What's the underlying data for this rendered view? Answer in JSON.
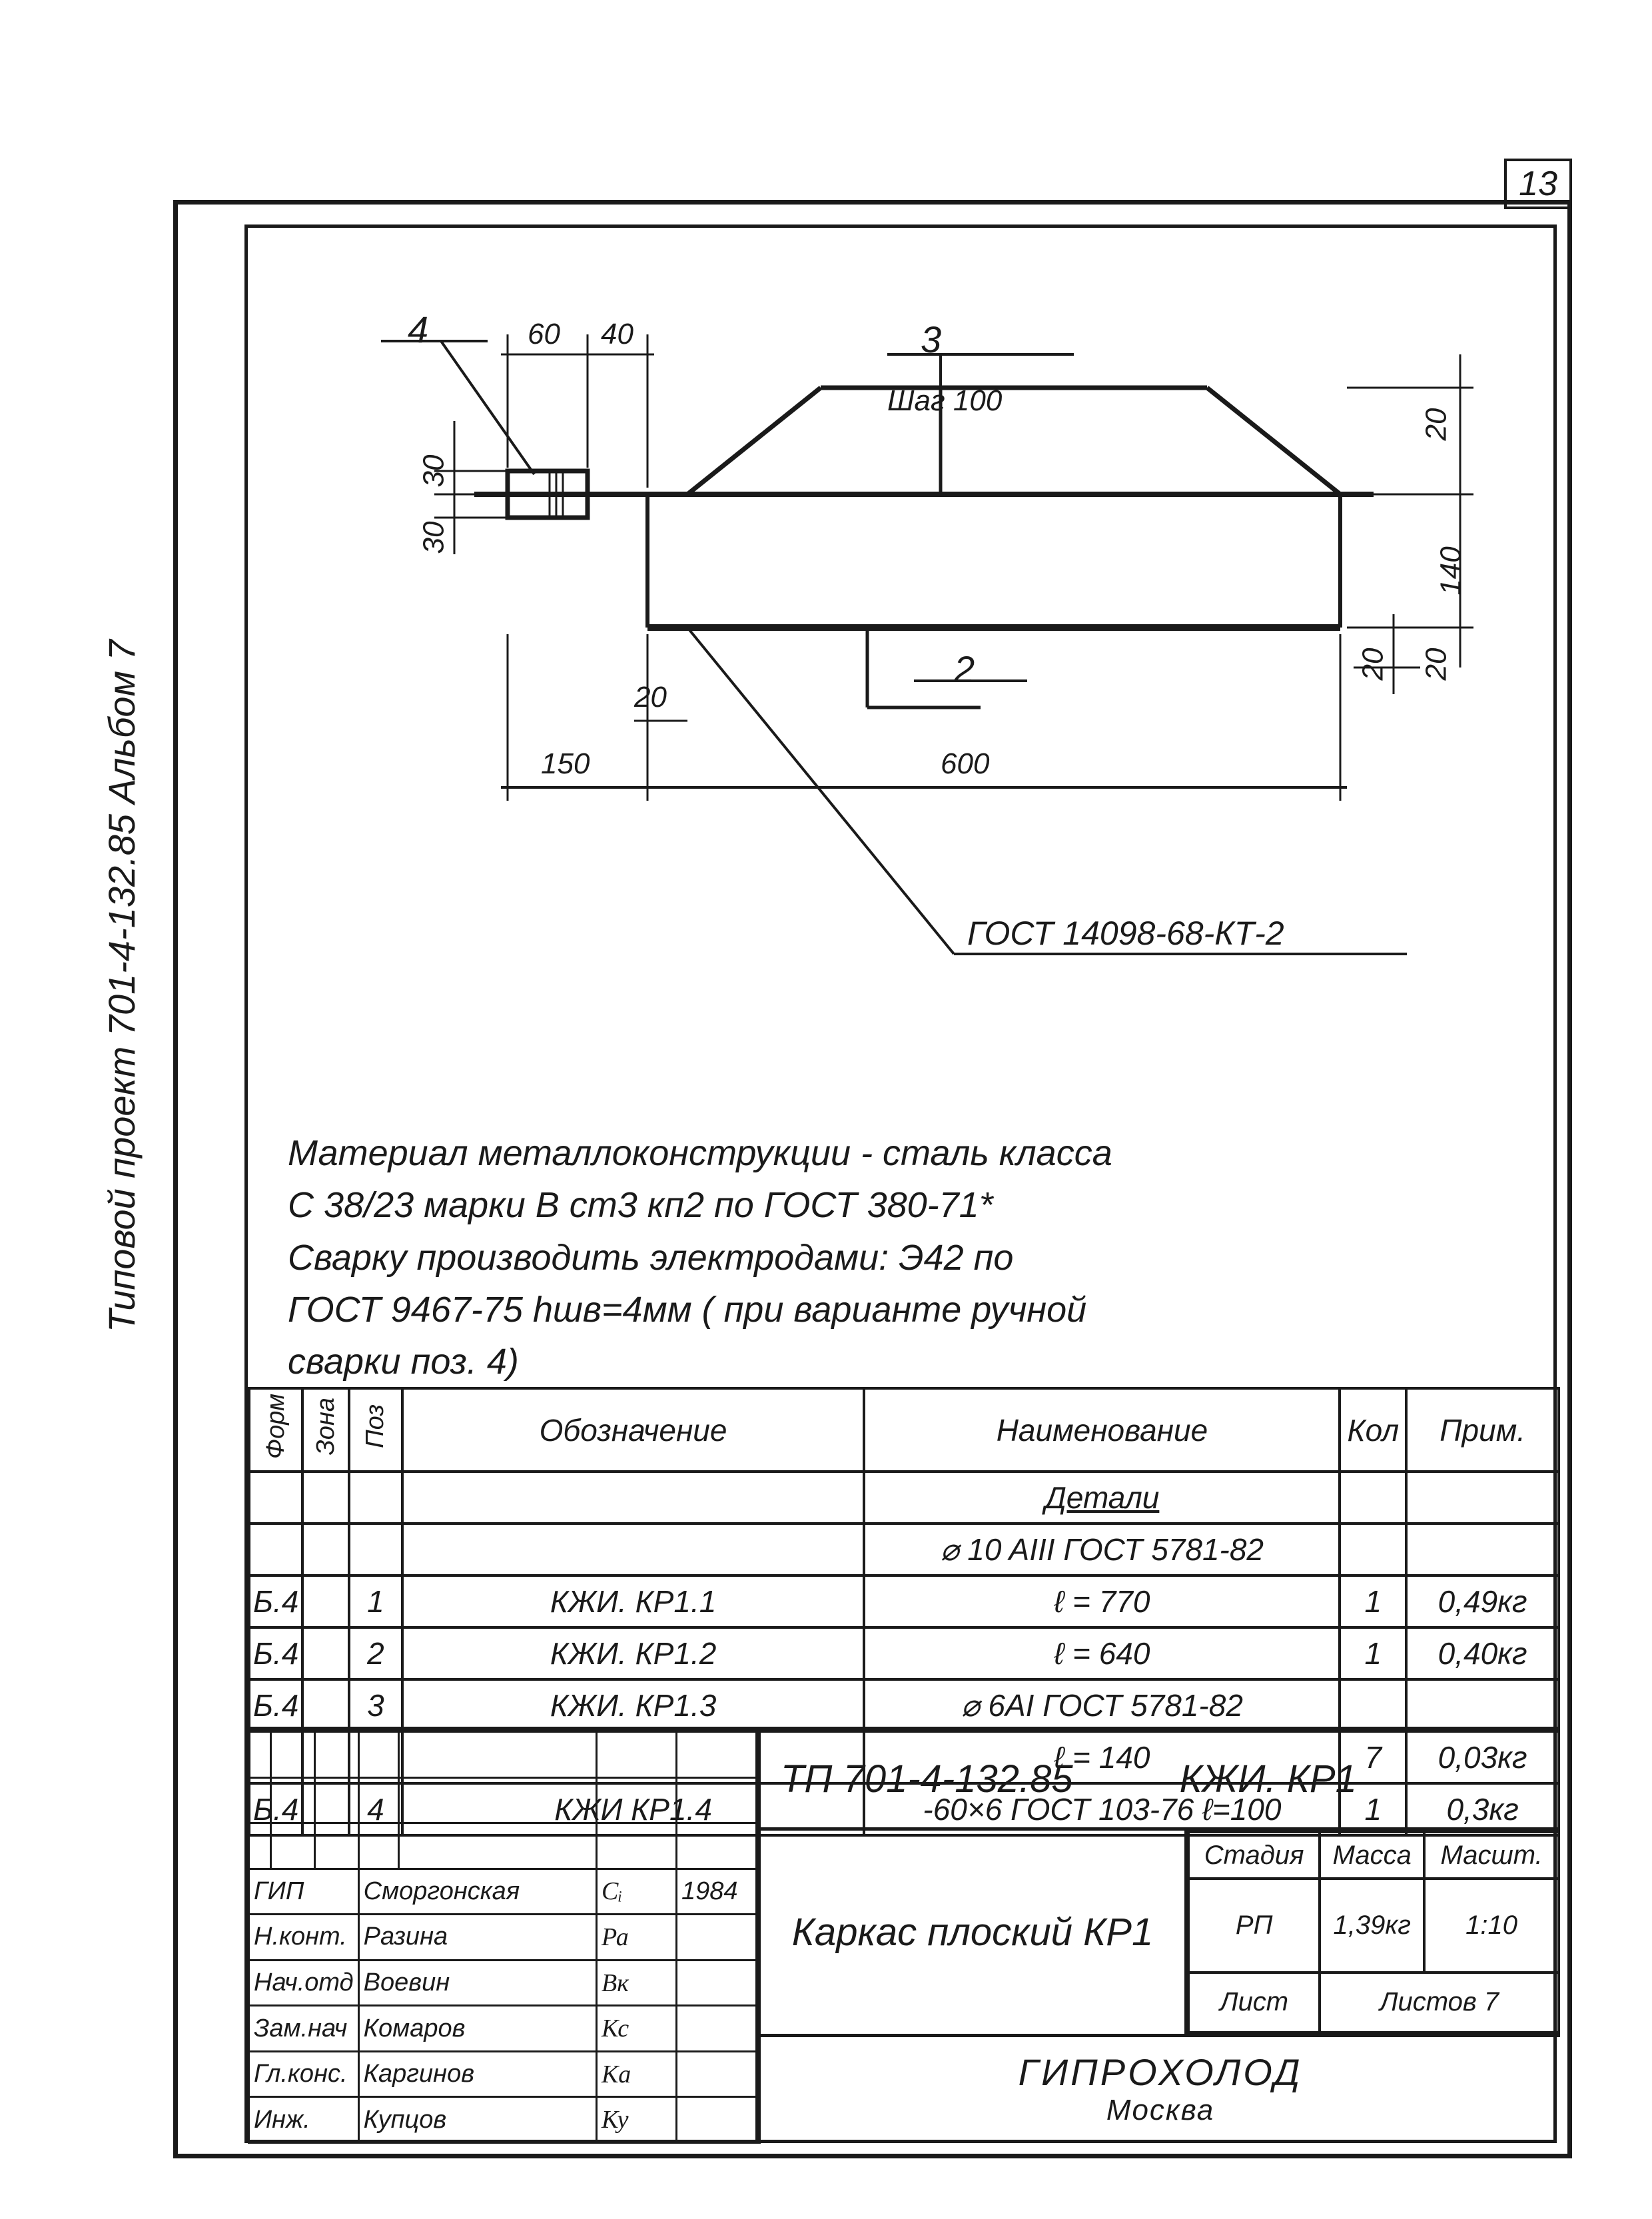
{
  "page_number": "13",
  "side_label": "Типовой проект 701-4-132.85   Альбом 7",
  "drawing": {
    "callouts": {
      "c4": "4",
      "c3": "3",
      "c2": "2"
    },
    "dims": {
      "d60": "60",
      "d40": "40",
      "d30a": "30",
      "d30b": "30",
      "d20a": "20",
      "d140": "140",
      "d20b": "20",
      "d20c": "20",
      "d20d": "20",
      "d150": "150",
      "d600": "600",
      "step": "Шаг 100",
      "gost_ref": "ГОСТ 14098-68-КТ-2"
    }
  },
  "notes": {
    "line1": "Материал металлоконструкции - сталь класса",
    "line2": "С 38/23 марки В ст3 кп2 по ГОСТ 380-71*",
    "line3": "Сварку производить электродами: Э42 по",
    "line4": "ГОСТ 9467-75  hшв=4мм ( при варианте ручной",
    "line5": "сварки поз. 4)"
  },
  "spec": {
    "headers": {
      "form": "Форм",
      "zona": "Зона",
      "poz": "Поз",
      "oboz": "Обозначение",
      "naim": "Наименование",
      "kol": "Кол",
      "prim": "Прим."
    },
    "rows": [
      {
        "form": "",
        "zona": "",
        "poz": "",
        "oboz": "",
        "naim": "Детали",
        "kol": "",
        "prim": "",
        "naim_class": "underline"
      },
      {
        "form": "",
        "zona": "",
        "poz": "",
        "oboz": "",
        "naim": "⌀ 10 AIII ГОСТ 5781-82",
        "kol": "",
        "prim": ""
      },
      {
        "form": "Б.4",
        "zona": "",
        "poz": "1",
        "oboz": "КЖИ.  КР1.1",
        "naim": "ℓ = 770",
        "kol": "1",
        "prim": "0,49кг"
      },
      {
        "form": "Б.4",
        "zona": "",
        "poz": "2",
        "oboz": "КЖИ.  КР1.2",
        "naim": "ℓ = 640",
        "kol": "1",
        "prim": "0,40кг"
      },
      {
        "form": "Б.4",
        "zona": "",
        "poz": "3",
        "oboz": "КЖИ.  КР1.3",
        "naim": "⌀ 6AI ГОСТ 5781-82",
        "kol": "",
        "prim": ""
      },
      {
        "form": "",
        "zona": "",
        "poz": "",
        "oboz": "",
        "naim": "ℓ = 140",
        "kol": "7",
        "prim": "0,03кг"
      },
      {
        "form": "Б.4",
        "zona": "",
        "poz": "4",
        "oboz": "КЖИ  КР1.4",
        "naim": "-60×6 ГОСТ 103-76 ℓ=100",
        "kol": "1",
        "prim": "0,3кг"
      }
    ]
  },
  "titleblock": {
    "doc_number": "ТП 701-4-132.85",
    "doc_code": "КЖИ. КР1",
    "title": "Каркас плоский КР1",
    "roles": [
      {
        "role": "ГИП",
        "name": "Сморгонская",
        "sig": "Сᵢ",
        "date": "1984"
      },
      {
        "role": "Н.конт.",
        "name": "Разина",
        "sig": "Ра",
        "date": ""
      },
      {
        "role": "Нач.отд",
        "name": "Воевин",
        "sig": "Вк",
        "date": ""
      },
      {
        "role": "Зам.нач",
        "name": "Комаров",
        "sig": "Кс",
        "date": ""
      },
      {
        "role": "Гл.конс.",
        "name": "Каргинов",
        "sig": "Ка",
        "date": ""
      },
      {
        "role": "Инж.",
        "name": "Купцов",
        "sig": "Ку",
        "date": ""
      }
    ],
    "stats": {
      "h_stage": "Стадия",
      "h_mass": "Масса",
      "h_scale": "Масшт.",
      "stage": "РП",
      "mass": "1,39кг",
      "scale": "1:10",
      "sheet_lbl": "Лист",
      "sheets_lbl": "Листов 7"
    },
    "org": "ГИПРОХОЛОД",
    "org_city": "Москва"
  }
}
